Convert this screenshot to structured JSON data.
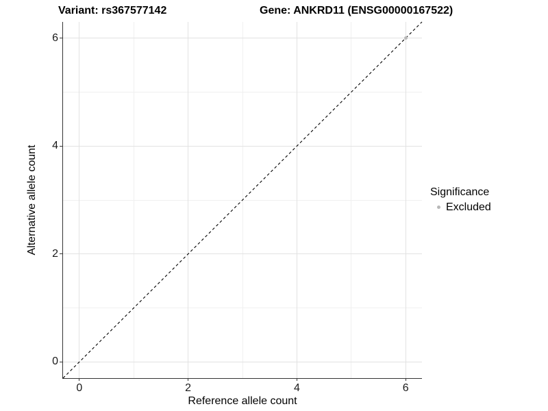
{
  "chart_data": {
    "type": "scatter",
    "titles": {
      "left": "Variant: rs367577142",
      "right": "Gene: ANKRD11 (ENSG00000167522)"
    },
    "xlabel": "Reference allele count",
    "ylabel": "Alternative allele count",
    "xlim": [
      -0.3,
      6.3
    ],
    "ylim": [
      -0.3,
      6.3
    ],
    "xticks": [
      0,
      2,
      4,
      6
    ],
    "yticks": [
      0,
      2,
      4,
      6
    ],
    "major_gridlines": [
      0,
      2,
      4,
      6
    ],
    "minor_gridlines": [
      1,
      3,
      5
    ],
    "grid": true,
    "reference_line": {
      "type": "identity",
      "style": "dashed",
      "color": "#000000"
    },
    "series": [
      {
        "name": "Excluded",
        "color": "#b8b8b8",
        "points": [
          {
            "x": 6,
            "y": 6
          }
        ]
      }
    ],
    "legend": {
      "title": "Significance",
      "position": "right",
      "entries": [
        {
          "label": "Excluded",
          "color": "#b8b8b8"
        }
      ]
    }
  },
  "colors": {
    "background": "#ffffff",
    "axis_line": "#333333",
    "major_grid": "#e2e2e2",
    "minor_grid": "#f0f0f0",
    "tick_label": "#1a1a1a",
    "reference_line": "#000000",
    "excluded_point": "#b8b8b8"
  }
}
